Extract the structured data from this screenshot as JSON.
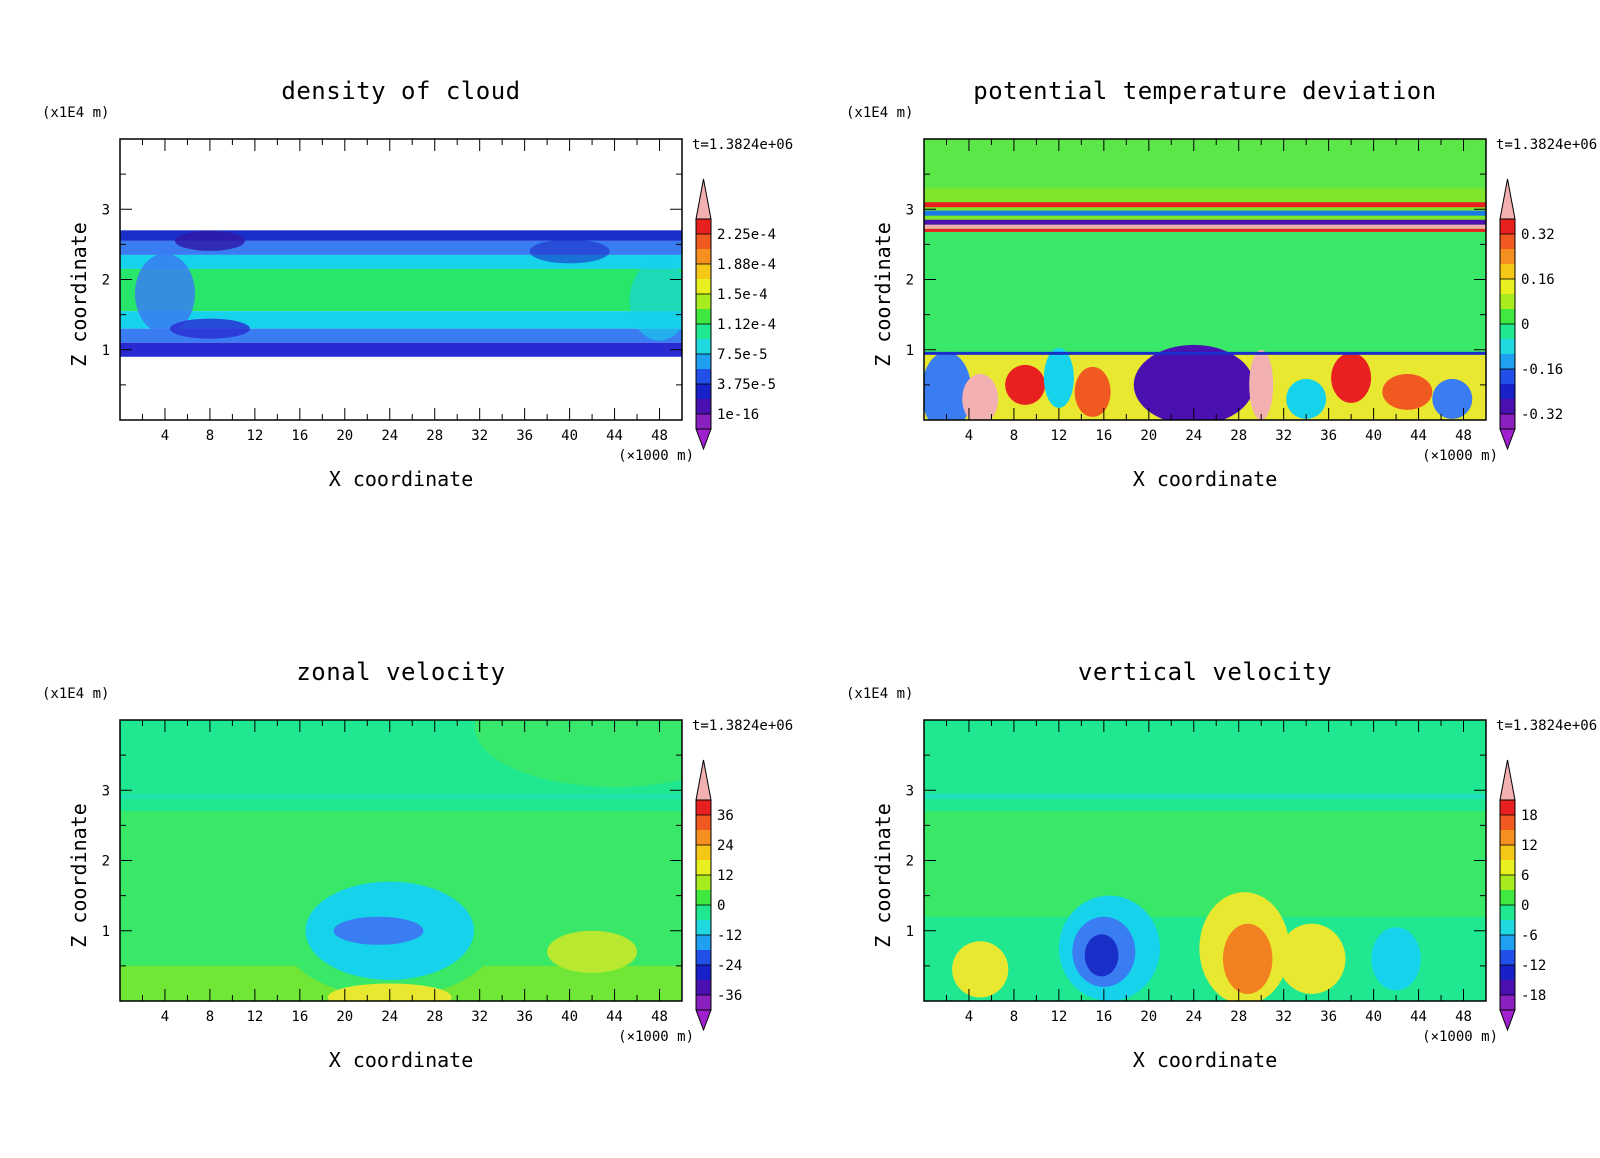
{
  "chart_data": [
    {
      "type": "heatmap",
      "title": "density of cloud",
      "xlabel": "X coordinate",
      "ylabel": "Z coordinate",
      "x_unit": "(×1000 m)",
      "y_unit": "(x1E4 m)",
      "timestamp": "t=1.3824e+06",
      "xlim": [
        0,
        50
      ],
      "ylim": [
        0,
        4
      ],
      "x_ticks": [
        "4",
        "8",
        "12",
        "16",
        "20",
        "24",
        "28",
        "32",
        "36",
        "40",
        "44",
        "48"
      ],
      "y_ticks": [
        "1",
        "2",
        "3"
      ],
      "colorbar_labels": [
        "2.25e-4",
        "1.88e-4",
        "1.5e-4",
        "1.12e-4",
        "7.5e-5",
        "3.75e-5",
        "1e-16"
      ],
      "cloud_layer_z": [
        0.9,
        2.7
      ],
      "bands": [
        {
          "z0": 2.55,
          "z1": 2.7,
          "color": "#1a2ec8"
        },
        {
          "z0": 2.35,
          "z1": 2.55,
          "color": "#3a7cf2"
        },
        {
          "z0": 2.15,
          "z1": 2.35,
          "color": "#16d2ea"
        },
        {
          "z0": 1.55,
          "z1": 2.15,
          "color": "#28e66a"
        },
        {
          "z0": 1.3,
          "z1": 1.55,
          "color": "#16d2ea"
        },
        {
          "z0": 1.1,
          "z1": 1.3,
          "color": "#3a7cf2"
        },
        {
          "z0": 0.9,
          "z1": 1.1,
          "color": "#2a2ad2"
        }
      ]
    },
    {
      "type": "heatmap",
      "title": "potential temperature deviation",
      "xlabel": "X coordinate",
      "ylabel": "Z coordinate",
      "x_unit": "(×1000 m)",
      "y_unit": "(x1E4 m)",
      "timestamp": "t=1.3824e+06",
      "xlim": [
        0,
        50
      ],
      "ylim": [
        0,
        4
      ],
      "x_ticks": [
        "4",
        "8",
        "12",
        "16",
        "20",
        "24",
        "28",
        "32",
        "36",
        "40",
        "44",
        "48"
      ],
      "y_ticks": [
        "1",
        "2",
        "3"
      ],
      "colorbar_labels": [
        "0.32",
        "0.16",
        "0",
        "-0.16",
        "-0.32"
      ],
      "bands": [
        {
          "z0": 2.75,
          "z1": 4.0,
          "color": "#7ee62a"
        },
        {
          "z0": 2.85,
          "z1": 3.05,
          "color": "#1a7ae8"
        },
        {
          "z0": 2.7,
          "z1": 2.8,
          "color": "#f0a0a0"
        },
        {
          "z0": 0.95,
          "z1": 2.7,
          "color": "#3ae868"
        },
        {
          "z0": 0.0,
          "z1": 0.95,
          "color": "#f0c030"
        }
      ]
    },
    {
      "type": "heatmap",
      "title": "zonal velocity",
      "xlabel": "X coordinate",
      "ylabel": "Z coordinate",
      "x_unit": "(×1000 m)",
      "y_unit": "(x1E4 m)",
      "timestamp": "t=1.3824e+06",
      "xlim": [
        0,
        50
      ],
      "ylim": [
        0,
        4
      ],
      "x_ticks": [
        "4",
        "8",
        "12",
        "16",
        "20",
        "24",
        "28",
        "32",
        "36",
        "40",
        "44",
        "48"
      ],
      "y_ticks": [
        "1",
        "2",
        "3"
      ],
      "colorbar_labels": [
        "36",
        "24",
        "12",
        "0",
        "-12",
        "-24",
        "-36"
      ],
      "features": [
        {
          "x": 24,
          "z": 1.05,
          "rx": 10,
          "rz": 1.0,
          "color": "#3ae868"
        },
        {
          "x": 24,
          "z": 1.0,
          "rx": 7.5,
          "rz": 0.7,
          "color": "#16d2ea"
        },
        {
          "x": 23,
          "z": 1.0,
          "rx": 4,
          "rz": 0.2,
          "color": "#3a7cf2"
        },
        {
          "x": 24,
          "z": 0.05,
          "rx": 5.5,
          "rz": 0.2,
          "color": "#e8e830"
        },
        {
          "x": 42,
          "z": 0.7,
          "rx": 4,
          "rz": 0.3,
          "color": "#b8e830"
        }
      ]
    },
    {
      "type": "heatmap",
      "title": "vertical velocity",
      "xlabel": "X coordinate",
      "ylabel": "Z coordinate",
      "x_unit": "(×1000 m)",
      "y_unit": "(x1E4 m)",
      "timestamp": "t=1.3824e+06",
      "xlim": [
        0,
        50
      ],
      "ylim": [
        0,
        4
      ],
      "x_ticks": [
        "4",
        "8",
        "12",
        "16",
        "20",
        "24",
        "28",
        "32",
        "36",
        "40",
        "44",
        "48"
      ],
      "y_ticks": [
        "1",
        "2",
        "3"
      ],
      "colorbar_labels": [
        "18",
        "12",
        "6",
        "0",
        "-6",
        "-12",
        "-18"
      ],
      "features": [
        {
          "x": 16.5,
          "z": 0.75,
          "rx": 4.5,
          "rz": 0.75,
          "color": "#16d2ea"
        },
        {
          "x": 16.0,
          "z": 0.7,
          "rx": 2.8,
          "rz": 0.5,
          "color": "#3a7cf2"
        },
        {
          "x": 15.8,
          "z": 0.65,
          "rx": 1.5,
          "rz": 0.3,
          "color": "#1a2ec8"
        },
        {
          "x": 28.5,
          "z": 0.75,
          "rx": 4,
          "rz": 0.8,
          "color": "#e8e830"
        },
        {
          "x": 28.8,
          "z": 0.6,
          "rx": 2.2,
          "rz": 0.5,
          "color": "#f08020"
        },
        {
          "x": 42,
          "z": 0.6,
          "rx": 2.2,
          "rz": 0.45,
          "color": "#16d2ea"
        },
        {
          "x": 34.5,
          "z": 0.6,
          "rx": 3,
          "rz": 0.5,
          "color": "#e8e830"
        },
        {
          "x": 5,
          "z": 0.45,
          "rx": 2.5,
          "rz": 0.4,
          "color": "#e8e830"
        }
      ]
    }
  ]
}
